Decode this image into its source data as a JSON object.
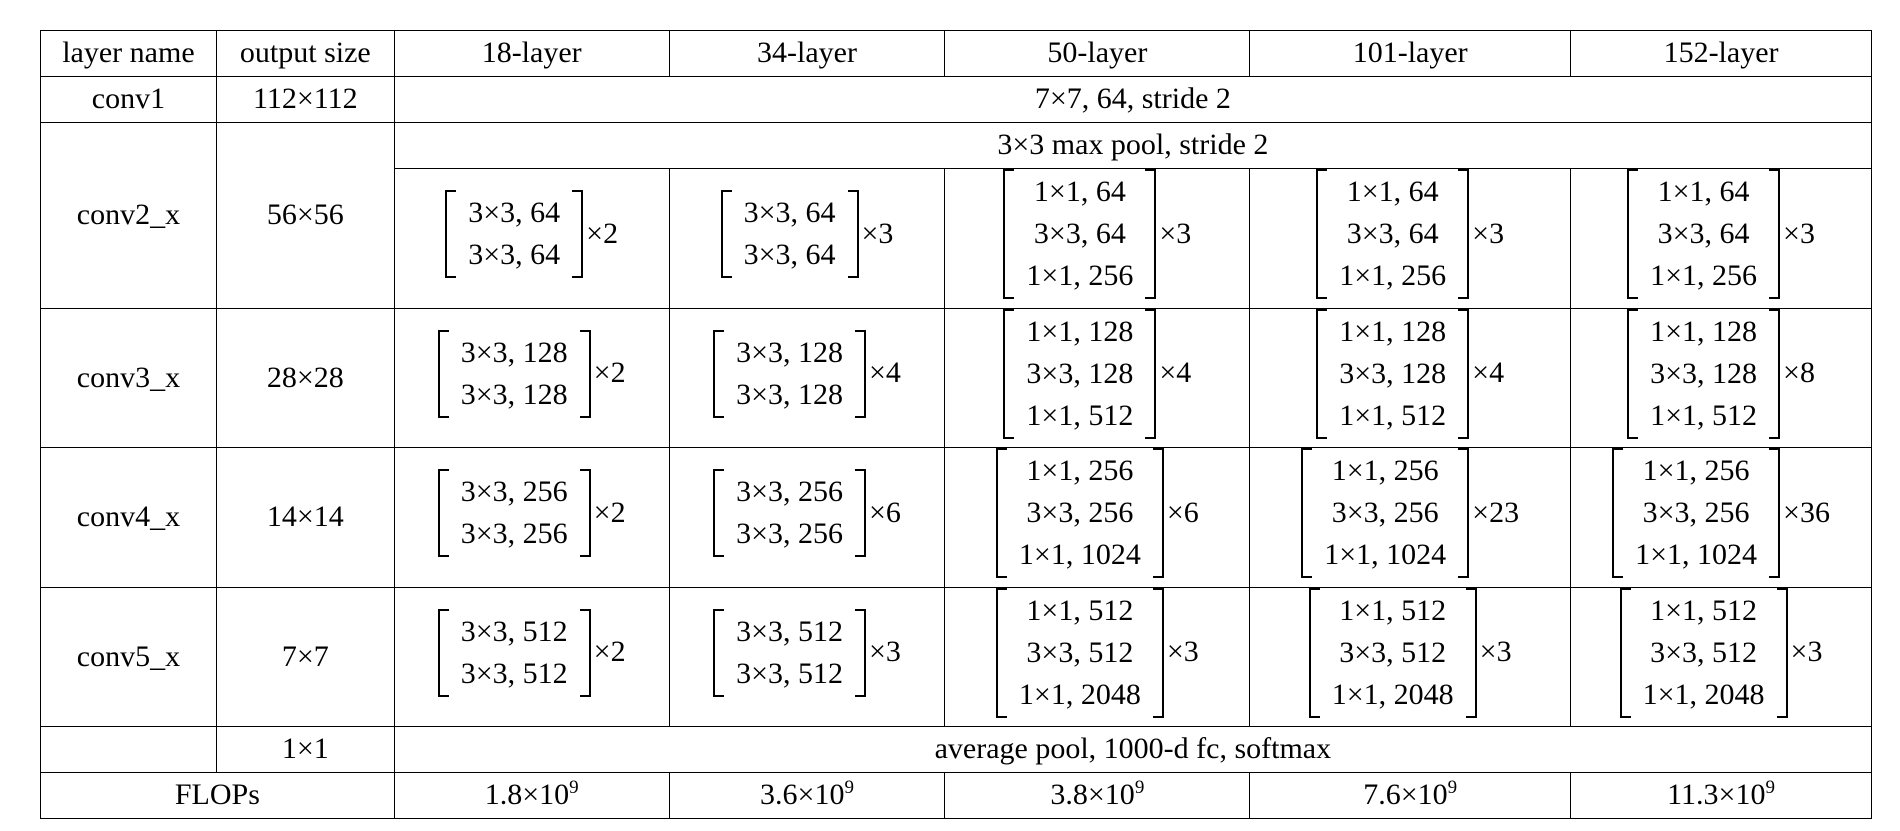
{
  "header": [
    "layer name",
    "output size",
    "18-layer",
    "34-layer",
    "50-layer",
    "101-layer",
    "152-layer"
  ],
  "conv1": {
    "name": "conv1",
    "output": "112×112",
    "spec": "7×7, 64, stride 2"
  },
  "conv2": {
    "name": "conv2_x",
    "output": "56×56",
    "pool": "3×3 max pool, stride 2",
    "blocks": [
      {
        "entries": [
          "3×3, 64",
          "3×3, 64"
        ],
        "mult": "×2"
      },
      {
        "entries": [
          "3×3, 64",
          "3×3, 64"
        ],
        "mult": "×3"
      },
      {
        "entries": [
          "1×1, 64",
          "3×3, 64",
          "1×1, 256"
        ],
        "mult": "×3"
      },
      {
        "entries": [
          "1×1, 64",
          "3×3, 64",
          "1×1, 256"
        ],
        "mult": "×3"
      },
      {
        "entries": [
          "1×1, 64",
          "3×3, 64",
          "1×1, 256"
        ],
        "mult": "×3"
      }
    ]
  },
  "conv3": {
    "name": "conv3_x",
    "output": "28×28",
    "blocks": [
      {
        "entries": [
          "3×3, 128",
          "3×3, 128"
        ],
        "mult": "×2"
      },
      {
        "entries": [
          "3×3, 128",
          "3×3, 128"
        ],
        "mult": "×4"
      },
      {
        "entries": [
          "1×1, 128",
          "3×3, 128",
          "1×1, 512"
        ],
        "mult": "×4"
      },
      {
        "entries": [
          "1×1, 128",
          "3×3, 128",
          "1×1, 512"
        ],
        "mult": "×4"
      },
      {
        "entries": [
          "1×1, 128",
          "3×3, 128",
          "1×1, 512"
        ],
        "mult": "×8"
      }
    ]
  },
  "conv4": {
    "name": "conv4_x",
    "output": "14×14",
    "blocks": [
      {
        "entries": [
          "3×3, 256",
          "3×3, 256"
        ],
        "mult": "×2"
      },
      {
        "entries": [
          "3×3, 256",
          "3×3, 256"
        ],
        "mult": "×6"
      },
      {
        "entries": [
          "1×1, 256",
          "3×3, 256",
          "1×1, 1024"
        ],
        "mult": "×6"
      },
      {
        "entries": [
          "1×1, 256",
          "3×3, 256",
          "1×1, 1024"
        ],
        "mult": "×23"
      },
      {
        "entries": [
          "1×1, 256",
          "3×3, 256",
          "1×1, 1024"
        ],
        "mult": "×36"
      }
    ]
  },
  "conv5": {
    "name": "conv5_x",
    "output": "7×7",
    "blocks": [
      {
        "entries": [
          "3×3, 512",
          "3×3, 512"
        ],
        "mult": "×2"
      },
      {
        "entries": [
          "3×3, 512",
          "3×3, 512"
        ],
        "mult": "×3"
      },
      {
        "entries": [
          "1×1, 512",
          "3×3, 512",
          "1×1, 2048"
        ],
        "mult": "×3"
      },
      {
        "entries": [
          "1×1, 512",
          "3×3, 512",
          "1×1, 2048"
        ],
        "mult": "×3"
      },
      {
        "entries": [
          "1×1, 512",
          "3×3, 512",
          "1×1, 2048"
        ],
        "mult": "×3"
      }
    ]
  },
  "avg": {
    "output": "1×1",
    "spec": "average pool, 1000-d fc, softmax"
  },
  "flops": {
    "label": "FLOPs",
    "values": [
      {
        "base": "1.8×10",
        "exp": "9"
      },
      {
        "base": "3.6×10",
        "exp": "9"
      },
      {
        "base": "3.8×10",
        "exp": "9"
      },
      {
        "base": "7.6×10",
        "exp": "9"
      },
      {
        "base": "11.3×10",
        "exp": "9"
      }
    ]
  }
}
